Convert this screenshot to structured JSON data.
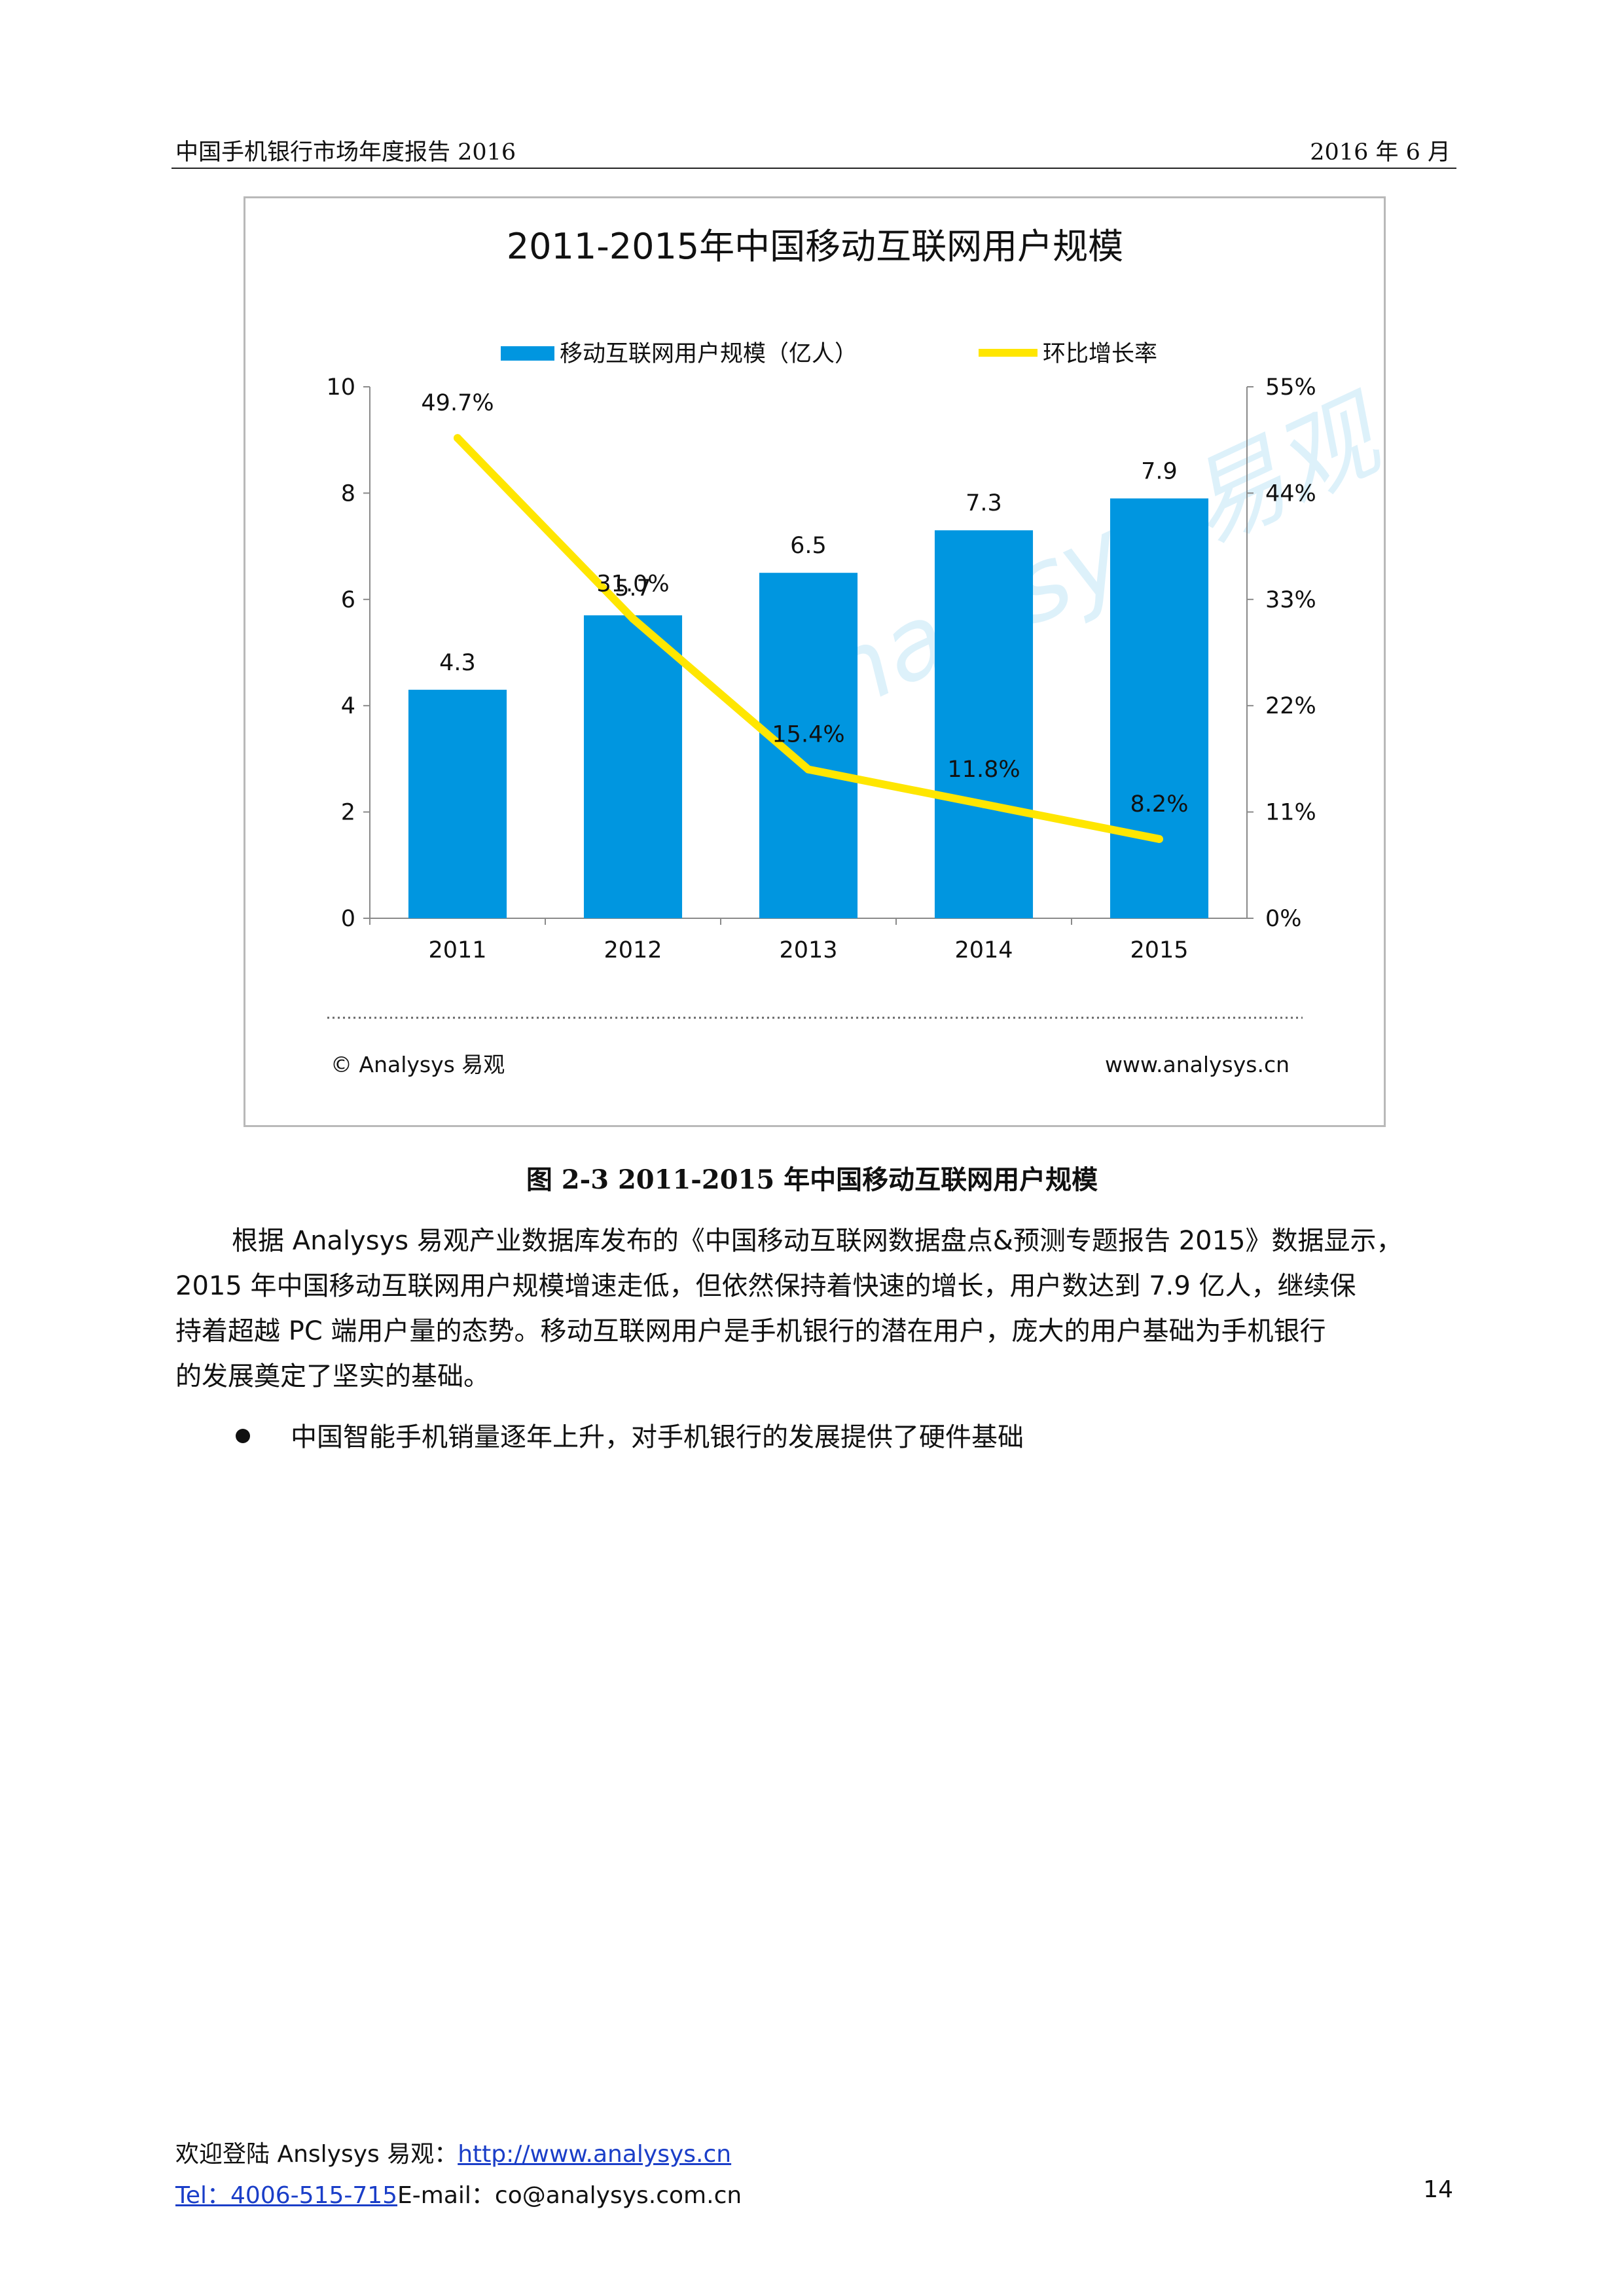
{
  "header": {
    "left": "中国手机银行市场年度报告 2016",
    "right": "2016 年 6 月"
  },
  "figure": {
    "caption": "图 2-3 2011-2015 年中国移动互联网用户规模",
    "footer_left": "© Analysys 易观",
    "footer_right": "www.analysys.cn",
    "watermark": "Analysys 易观"
  },
  "chart_data": {
    "type": "bar",
    "title": "2011-2015年中国移动互联网用户规模",
    "categories": [
      "2011",
      "2012",
      "2013",
      "2014",
      "2015"
    ],
    "series": [
      {
        "name": "移动互联网用户规模（亿人）",
        "type": "bar",
        "axis": "left",
        "color": "#0096e0",
        "values": [
          4.3,
          5.7,
          6.5,
          7.3,
          7.9
        ],
        "labels": [
          "4.3",
          "5.7",
          "6.5",
          "7.3",
          "7.9"
        ]
      },
      {
        "name": "环比增长率",
        "type": "line",
        "axis": "right",
        "color": "#ffe600",
        "values": [
          49.7,
          31.0,
          15.4,
          11.8,
          8.2
        ],
        "labels": [
          "49.7%",
          "31.0%",
          "15.4%",
          "11.8%",
          "8.2%"
        ]
      }
    ],
    "y_left": {
      "min": 0,
      "max": 10,
      "ticks": [
        "0",
        "2",
        "4",
        "6",
        "8",
        "10"
      ]
    },
    "y_right": {
      "min": 0,
      "max": 55,
      "ticks": [
        "0%",
        "11%",
        "22%",
        "33%",
        "44%",
        "55%"
      ]
    },
    "legend_position": "top",
    "grid": false
  },
  "body": {
    "paragraph_lines": [
      "根据 Analysys 易观产业数据库发布的《中国移动互联网数据盘点&预测专题报告 2015》数据显示，",
      "2015 年中国移动互联网用户规模增速走低，但依然保持着快速的增长，用户数达到 7.9 亿人，继续保",
      "持着超越 PC 端用户量的态势。移动互联网用户是手机银行的潜在用户，庞大的用户基础为手机银行",
      "的发展奠定了坚实的基础。"
    ],
    "bullet": "中国智能手机销量逐年上升，对手机银行的发展提供了硬件基础"
  },
  "footer": {
    "welcome_prefix": "欢迎登陆 Anslysys 易观：",
    "welcome_link": "http://www.analysys.cn",
    "tel": "Tel：4006-515-715",
    "email": "E-mail：co@analysys.com.cn",
    "page_number": "14"
  }
}
